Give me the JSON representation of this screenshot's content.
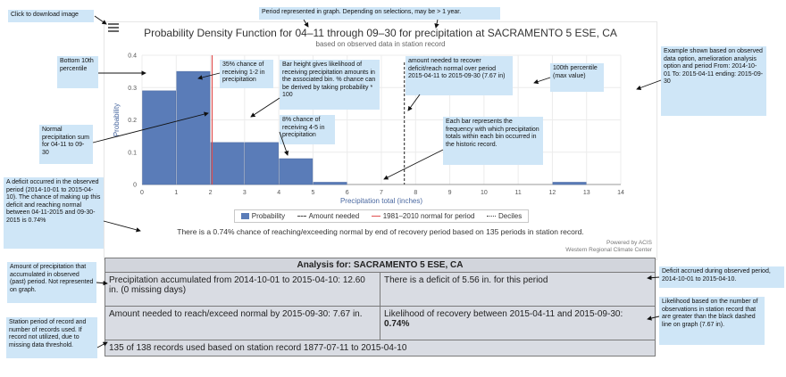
{
  "chart": {
    "title": "Probability Density Function for 04–11 through 09–30 for precipitation at SACRAMENTO 5 ESE, CA",
    "subtitle": "based on observed data in station record",
    "menu_icon": "hamburger-icon",
    "legend": {
      "probability": "Probability",
      "amount_needed": "Amount needed",
      "normal": "1981–2010 normal for period",
      "deciles": "Deciles"
    },
    "summary": "There is a 0.74% chance of reaching/exceeding normal by end of recovery period based on 135 periods in station record.",
    "credit_1": "Powered by ACIS",
    "credit_2": "Western Regional Climate Center"
  },
  "chart_data": {
    "type": "bar",
    "title": "Probability Density Function for 04–11 through 09–30 for precipitation at SACRAMENTO 5 ESE, CA",
    "xlabel": "Precipitation total (inches)",
    "ylabel": "Probability",
    "xlim": [
      0,
      14
    ],
    "ylim": [
      0,
      0.4
    ],
    "x_ticks": [
      "0",
      "1",
      "2",
      "3",
      "4",
      "5",
      "6",
      "7",
      "8",
      "9",
      "10",
      "11",
      "12",
      "13",
      "14"
    ],
    "y_ticks": [
      "0",
      "0.1",
      "0.2",
      "0.3",
      "0.4"
    ],
    "bins": [
      {
        "start": 0,
        "end": 1,
        "value": 0.29
      },
      {
        "start": 1,
        "end": 2,
        "value": 0.35
      },
      {
        "start": 2,
        "end": 3,
        "value": 0.13
      },
      {
        "start": 3,
        "end": 4,
        "value": 0.13
      },
      {
        "start": 4,
        "end": 5,
        "value": 0.08
      },
      {
        "start": 5,
        "end": 6,
        "value": 0.007
      },
      {
        "start": 12,
        "end": 13,
        "value": 0.007
      }
    ],
    "amount_needed": 7.67,
    "normal_line": 2.05,
    "colors": {
      "bar": "#5a7cb8",
      "normal": "#e05050",
      "needed": "#444444"
    }
  },
  "analysis": {
    "header": "Analysis for: SACRAMENTO 5 ESE, CA",
    "accumulated": "Precipitation accumulated from 2014-10-01 to 2015-04-10: 12.60 in. (0 missing days)",
    "deficit": "There is a deficit of 5.56 in. for this period",
    "needed": "Amount needed to reach/exceed normal by 2015-09-30: 7.67 in.",
    "likelihood_label": "Likelihood of recovery between 2015-04-11 and 2015-09-30:",
    "likelihood_value": "0.74%",
    "records": "135 of 138 records used based on station record 1877-07-11 to 2015-04-10"
  },
  "notes": {
    "download": "Click to download image",
    "period": "Period represented in graph. Depending on selections, may be > 1 year.",
    "bottom_percentile": "Bottom 10th percentile",
    "normal_sum": "Normal precipitation sum for 04-11 to 09-30",
    "deficit_occurred": "A deficit occurred in the observed period (2014-10-01 to 2015-04-10). The chance of making up this deficit and reaching normal between 04-11-2015 and 09-30-2015 is 0.74%",
    "amount_accum": "Amount of precipitation that accumulated in observed (past) period. Not represented on graph.",
    "station_period": "Station period of record and number of records used. If record not utilized, due to missing data threshold.",
    "chance_35": "35% chance of receiving 1-2 in precipitation",
    "bar_height": "Bar height gives likelihood of receiving precipitation amounts in the associated bin. % chance can be derived by taking probability * 100",
    "chance_8": "8% chance of receiving 4-5 in precipitation",
    "amount_needed_note": "amount needed to recover deficit/reach normal over period 2015-04-11 to 2015-09-30 (7.67 in)",
    "percentile_100": "100th percentile (max value)",
    "each_bar": "Each bar represents the frequency with which precipitation totals within each bin occurred in the historic record.",
    "example_shown": "Example shown based on observed data option, amelioration analysis option and period From: 2014-10-01 To: 2015-04-11 ending: 2015-09-30",
    "deficit_accrued": "Deficit accrued during observed period, 2014-10-01 to 2015-04-10.",
    "likelihood_based": "Likelihood based on the number of observations in station record that are greater than the black dashed line on graph (7.67 in)."
  }
}
